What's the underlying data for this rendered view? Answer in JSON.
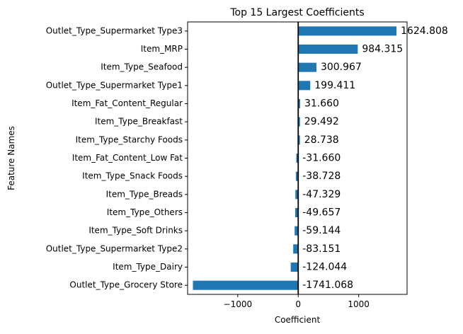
{
  "chart_data": {
    "type": "bar",
    "orientation": "horizontal",
    "title": "Top 15 Largest Coefficients",
    "xlabel": "Coefficient",
    "ylabel": "Feature Names",
    "categories": [
      "Outlet_Type_Supermarket Type3",
      "Item_MRP",
      "Item_Type_Seafood",
      "Outlet_Type_Supermarket Type1",
      "Item_Fat_Content_Regular",
      "Item_Type_Breakfast",
      "Item_Type_Starchy Foods",
      "Item_Fat_Content_Low Fat",
      "Item_Type_Snack Foods",
      "Item_Type_Breads",
      "Item_Type_Others",
      "Item_Type_Soft Drinks",
      "Outlet_Type_Supermarket Type2",
      "Item_Type_Dairy",
      "Outlet_Type_Grocery Store"
    ],
    "values": [
      1624.808,
      984.315,
      300.967,
      199.411,
      31.66,
      29.492,
      28.738,
      -31.66,
      -38.728,
      -47.329,
      -49.657,
      -59.144,
      -83.151,
      -124.044,
      -1741.068
    ],
    "value_labels": [
      "1624.808",
      "984.315",
      "300.967",
      "199.411",
      "31.660",
      "29.492",
      "28.738",
      "-31.660",
      "-38.728",
      "-47.329",
      "-49.657",
      "-59.144",
      "-83.151",
      "-124.044",
      "-1741.068"
    ],
    "xticks": [
      -1000,
      0,
      1000
    ],
    "xtick_labels": [
      "−1000",
      "0",
      "1000"
    ],
    "xlim": [
      -1829,
      1800
    ],
    "grid": false,
    "zero_line": true,
    "bar_color": "#1f77b4"
  }
}
